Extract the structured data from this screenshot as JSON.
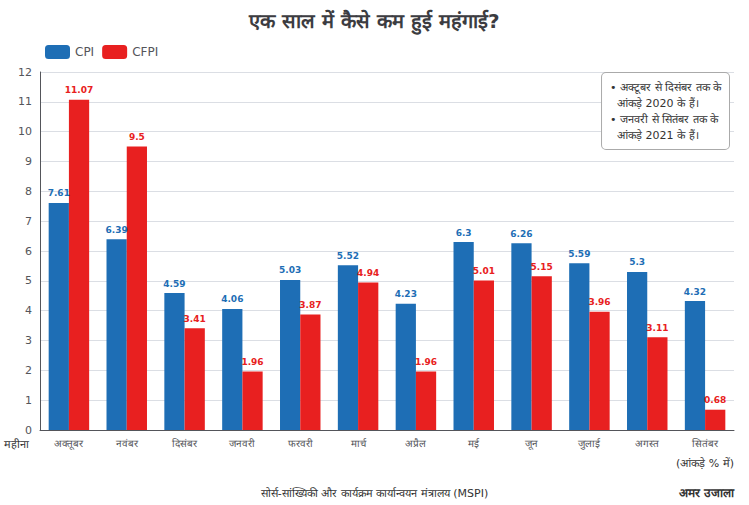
{
  "chart_data": {
    "type": "bar",
    "title": "एक साल में कैसे कम हुई महंगाई?",
    "xlabel": "महीना",
    "ylabel": "(आंकड़े % में)",
    "categories": [
      "अक्तूबर",
      "नवंबर",
      "दिसंबर",
      "जनवरी",
      "फरवरी",
      "मार्च",
      "अप्रैल",
      "मई",
      "जून",
      "जुलाई",
      "अगस्त",
      "सितंबर"
    ],
    "series": [
      {
        "name": "CPI",
        "color": "#1e6eb5",
        "values": [
          7.61,
          6.39,
          4.59,
          4.06,
          5.03,
          5.52,
          4.23,
          6.3,
          6.26,
          5.59,
          5.3,
          4.32
        ]
      },
      {
        "name": "CFPI",
        "color": "#e82020",
        "values": [
          11.07,
          9.5,
          3.41,
          1.96,
          3.87,
          4.94,
          1.96,
          5.01,
          5.15,
          3.96,
          3.11,
          0.68
        ]
      }
    ],
    "ylim": [
      0,
      12
    ],
    "yticks": [
      0,
      1,
      2,
      3,
      4,
      5,
      6,
      7,
      8,
      9,
      10,
      11,
      12
    ],
    "grid": true,
    "legend": "upper left",
    "data_labels": true,
    "annotations": [
      "• अक्टूबर से दिसंबर तक के\n  आंकड़े 2020 के हैं।\n• जनवरी से सितंबर तक के\n  आंकड़े 2021 के हैं।",
      "सोर्स-सांख्यिकी और कार्यक्रम कार्यान्वयन मंत्रालय (MSPI)",
      "अमर उजाला"
    ]
  }
}
